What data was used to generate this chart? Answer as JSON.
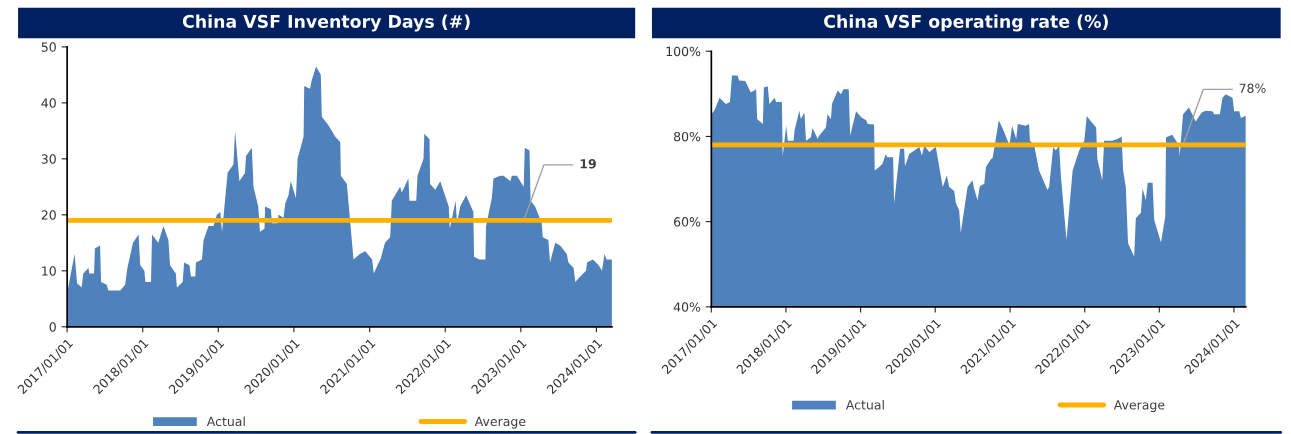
{
  "chart_data": [
    {
      "type": "area",
      "title": "China VSF Inventory Days (#)",
      "xlim": [
        "2017-01-01",
        "2024-03-16"
      ],
      "ylim": [
        0,
        50
      ],
      "yticks": [
        0,
        10,
        20,
        30,
        40,
        50
      ],
      "xticks": [
        {
          "value": "2017-01-01",
          "label": "2017/01/01"
        },
        {
          "value": "2018-01-01",
          "label": "2018/01/01"
        },
        {
          "value": "2019-01-01",
          "label": "2019/01/01"
        },
        {
          "value": "2020-01-01",
          "label": "2020/01/01"
        },
        {
          "value": "2021-01-01",
          "label": "2021/01/01"
        },
        {
          "value": "2022-01-01",
          "label": "2022/01/01"
        },
        {
          "value": "2023-01-01",
          "label": "2023/01/01"
        },
        {
          "value": "2024-01-01",
          "label": "2024/01/01"
        }
      ],
      "legend": "bottom",
      "grid": false,
      "ref_lines": [
        {
          "axis": "y",
          "value": 19,
          "label": "Average",
          "color": "#ffb000"
        }
      ],
      "annotations": [
        {
          "text": "19",
          "x": "2023-01-15",
          "y": 19
        }
      ],
      "series": [
        {
          "name": "Actual",
          "color": "#4f81bd",
          "x": [
            "2017-01-01",
            "2017-02-06",
            "2017-02-18",
            "2017-03-12",
            "2017-03-20",
            "2017-04-14",
            "2017-04-18",
            "2017-05-11",
            "2017-05-15",
            "2017-06-09",
            "2017-06-14",
            "2017-07-11",
            "2017-07-19",
            "2017-09-15",
            "2017-10-08",
            "2017-10-19",
            "2017-11-15",
            "2017-12-12",
            "2017-12-20",
            "2018-01-09",
            "2018-01-14",
            "2018-02-10",
            "2018-02-15",
            "2018-03-17",
            "2018-04-11",
            "2018-05-05",
            "2018-05-13",
            "2018-06-10",
            "2018-06-15",
            "2018-07-13",
            "2018-07-20",
            "2018-08-15",
            "2018-08-22",
            "2018-09-12",
            "2018-09-15",
            "2018-10-14",
            "2018-10-22",
            "2018-11-15",
            "2018-12-09",
            "2018-12-25",
            "2019-01-11",
            "2019-01-19",
            "2019-01-27",
            "2019-02-15",
            "2019-03-15",
            "2019-03-23",
            "2019-04-13",
            "2019-05-10",
            "2019-05-15",
            "2019-06-12",
            "2019-06-20",
            "2019-07-13",
            "2019-07-21",
            "2019-08-12",
            "2019-08-15",
            "2019-09-12",
            "2019-09-17",
            "2019-10-14",
            "2019-10-19",
            "2019-11-12",
            "2019-11-20",
            "2019-12-06",
            "2019-12-17",
            "2020-01-11",
            "2020-01-19",
            "2020-02-17",
            "2020-02-20",
            "2020-03-19",
            "2020-03-27",
            "2020-04-17",
            "2020-05-10",
            "2020-05-15",
            "2020-06-16",
            "2020-07-18",
            "2020-08-12",
            "2020-08-15",
            "2020-09-13",
            "2020-10-15",
            "2020-11-14",
            "2020-12-11",
            "2021-01-13",
            "2021-01-21",
            "2021-02-14",
            "2021-02-22",
            "2021-03-16",
            "2021-04-10",
            "2021-04-18",
            "2021-05-28",
            "2021-06-05",
            "2021-07-07",
            "2021-07-12",
            "2021-08-14",
            "2021-08-20",
            "2021-09-18",
            "2021-09-22",
            "2021-10-17",
            "2021-10-20",
            "2021-11-14",
            "2021-12-08",
            "2022-01-18",
            "2022-01-23",
            "2022-02-20",
            "2022-02-27",
            "2022-03-14",
            "2022-04-12",
            "2022-05-17",
            "2022-05-20",
            "2022-06-15",
            "2022-07-14",
            "2022-07-17",
            "2022-08-14",
            "2022-08-22",
            "2022-09-24",
            "2022-10-10",
            "2022-11-11",
            "2022-11-19",
            "2022-12-13",
            "2023-01-15",
            "2023-01-20",
            "2023-02-12",
            "2023-02-17",
            "2023-03-11",
            "2023-04-12",
            "2023-04-17",
            "2023-05-14",
            "2023-05-22",
            "2023-06-16",
            "2023-07-10",
            "2023-08-11",
            "2023-08-19",
            "2023-09-13",
            "2023-09-21",
            "2023-10-15",
            "2023-11-12",
            "2023-11-17",
            "2023-12-15",
            "2024-01-12",
            "2024-01-28",
            "2024-02-09",
            "2024-02-19",
            "2024-03-16"
          ],
          "values": [
            6,
            13,
            7.8,
            7,
            9.5,
            10.5,
            9.5,
            9.5,
            14,
            14.5,
            8,
            7.5,
            6.5,
            6.5,
            7.5,
            10.5,
            15,
            16.5,
            11,
            10,
            8,
            8,
            16.5,
            15,
            18,
            15.5,
            11,
            9.5,
            7,
            8,
            11.5,
            11,
            9,
            9,
            11.5,
            12,
            15.5,
            18,
            18,
            20,
            20.5,
            17,
            20,
            27.5,
            29,
            35,
            26,
            27.5,
            30.5,
            32,
            25,
            21.5,
            17,
            17.5,
            21.5,
            21,
            18.5,
            18.5,
            20,
            19.5,
            22,
            23.5,
            26,
            23,
            30,
            34,
            43,
            42.5,
            44,
            46.5,
            45,
            37.5,
            36,
            34,
            33,
            27,
            25.5,
            12,
            13,
            13.5,
            12,
            9.5,
            11.5,
            12,
            15,
            16,
            22.5,
            25,
            24,
            26.5,
            22.5,
            22.5,
            27,
            30,
            34.5,
            33.5,
            25.5,
            24.5,
            26,
            21.5,
            17.5,
            22.5,
            18.5,
            21.5,
            23.5,
            20.5,
            12.5,
            12,
            12,
            18,
            23,
            26.5,
            27,
            27,
            26,
            27,
            27,
            25,
            32,
            31.5,
            22.5,
            21.5,
            18.5,
            16,
            15.5,
            11.5,
            15,
            14.5,
            13,
            11.5,
            10.5,
            8,
            9,
            10,
            11.5,
            12,
            11,
            10,
            13,
            12,
            12
          ]
        }
      ]
    },
    {
      "type": "area",
      "title": "China VSF operating rate (%)",
      "xlim": [
        "2017-01-01",
        "2024-02-28"
      ],
      "ylim": [
        40,
        100
      ],
      "yticks": [
        {
          "value": 40,
          "label": "40%"
        },
        {
          "value": 60,
          "label": "60%"
        },
        {
          "value": 80,
          "label": "80%"
        },
        {
          "value": 100,
          "label": "100%"
        }
      ],
      "xticks": [
        {
          "value": "2017-01-01",
          "label": "2017/01/01"
        },
        {
          "value": "2018-01-01",
          "label": "2018/01/01"
        },
        {
          "value": "2019-01-01",
          "label": "2019/01/01"
        },
        {
          "value": "2020-01-01",
          "label": "2020/01/01"
        },
        {
          "value": "2021-01-01",
          "label": "2021/01/01"
        },
        {
          "value": "2022-01-01",
          "label": "2022/01/01"
        },
        {
          "value": "2023-01-01",
          "label": "2023/01/01"
        },
        {
          "value": "2024-01-01",
          "label": "2024/01/01"
        }
      ],
      "legend": "bottom",
      "grid": false,
      "ref_lines": [
        {
          "axis": "y",
          "value": 78,
          "label": "Average",
          "color": "#ffb000"
        }
      ],
      "annotations": [
        {
          "text": "78%",
          "x": "2023-04-27",
          "y": 78
        }
      ],
      "series": [
        {
          "name": "Actual",
          "color": "#4f81bd",
          "x": [
            "2017-01-01",
            "2017-01-17",
            "2017-02-10",
            "2017-03-13",
            "2017-04-02",
            "2017-04-12",
            "2017-05-09",
            "2017-05-17",
            "2017-06-16",
            "2017-07-13",
            "2017-08-08",
            "2017-08-13",
            "2017-09-10",
            "2017-09-15",
            "2017-10-04",
            "2017-10-12",
            "2017-11-06",
            "2017-11-14",
            "2017-12-12",
            "2017-12-16",
            "2018-01-02",
            "2018-01-10",
            "2018-02-07",
            "2018-02-12",
            "2018-03-07",
            "2018-03-15",
            "2018-04-01",
            "2018-04-09",
            "2018-05-03",
            "2018-05-11",
            "2018-06-05",
            "2018-06-13",
            "2018-07-15",
            "2018-07-23",
            "2018-08-09",
            "2018-08-14",
            "2018-09-11",
            "2018-09-27",
            "2018-10-09",
            "2018-11-04",
            "2018-11-11",
            "2018-12-10",
            "2019-01-04",
            "2019-01-28",
            "2019-02-05",
            "2019-03-08",
            "2019-03-11",
            "2019-04-02",
            "2019-04-18",
            "2019-05-04",
            "2019-05-12",
            "2019-06-09",
            "2019-06-14",
            "2019-07-13",
            "2019-08-02",
            "2019-08-06",
            "2019-08-27",
            "2019-09-21",
            "2019-10-15",
            "2019-10-28",
            "2019-11-09",
            "2019-12-03",
            "2019-12-27",
            "2020-01-04",
            "2020-01-29",
            "2020-02-07",
            "2020-02-27",
            "2020-03-09",
            "2020-04-03",
            "2020-04-11",
            "2020-04-27",
            "2020-05-05",
            "2020-06-07",
            "2020-07-01",
            "2020-07-09",
            "2020-07-26",
            "2020-08-06",
            "2020-08-28",
            "2020-09-05",
            "2020-09-30",
            "2020-10-08",
            "2020-11-07",
            "2020-11-30",
            "2020-12-29",
            "2021-01-11",
            "2021-01-31",
            "2021-02-08",
            "2021-03-19",
            "2021-04-04",
            "2021-04-08",
            "2021-04-29",
            "2021-05-23",
            "2021-07-03",
            "2021-07-11",
            "2021-07-31",
            "2021-08-13",
            "2021-08-29",
            "2021-09-07",
            "2021-10-04",
            "2021-11-03",
            "2021-12-05",
            "2021-12-30",
            "2022-01-11",
            "2022-02-01",
            "2022-02-26",
            "2022-03-04",
            "2022-03-28",
            "2022-04-06",
            "2022-05-16",
            "2022-06-10",
            "2022-07-01",
            "2022-07-08",
            "2022-07-21",
            "2022-08-01",
            "2022-08-31",
            "2022-09-08",
            "2022-10-03",
            "2022-10-11",
            "2022-10-27",
            "2022-11-05",
            "2022-11-29",
            "2022-12-07",
            "2023-01-09",
            "2023-01-30",
            "2023-02-03",
            "2023-03-05",
            "2023-04-07",
            "2023-04-10",
            "2023-04-27",
            "2023-05-26",
            "2023-06-28",
            "2023-07-27",
            "2023-08-16",
            "2023-09-18",
            "2023-09-26",
            "2023-10-24",
            "2023-11-06",
            "2023-11-22",
            "2023-12-25",
            "2024-01-02",
            "2024-01-27",
            "2024-02-04",
            "2024-02-25",
            "2024-02-28"
          ],
          "values": [
            85.2,
            86.2,
            89.1,
            87.6,
            88.1,
            94.3,
            94.3,
            93.1,
            93,
            90.3,
            91.1,
            84.1,
            82.9,
            91.5,
            91.8,
            87.6,
            89.1,
            88.1,
            88.1,
            75.3,
            82.5,
            79,
            79,
            81.4,
            86,
            84.1,
            85.6,
            79,
            79.8,
            82,
            79.4,
            80.2,
            82.1,
            85.2,
            84.1,
            87.6,
            90.8,
            89.9,
            91.1,
            91.1,
            80.2,
            85.9,
            84.5,
            83.8,
            82.9,
            82.8,
            72,
            72.8,
            73.6,
            75.8,
            75.1,
            75.1,
            64.3,
            77.1,
            77.1,
            73,
            75.9,
            76.7,
            77.5,
            75.5,
            77.9,
            76.3,
            77.3,
            77.5,
            70.5,
            68.1,
            70.9,
            68.1,
            67.2,
            64.3,
            62.7,
            57.4,
            68.1,
            69.7,
            67.8,
            65,
            68.3,
            68.9,
            72.8,
            74.7,
            75,
            83.8,
            81.4,
            77.9,
            82.5,
            79.4,
            82.9,
            82.5,
            82.9,
            79,
            77.9,
            72,
            67.4,
            68.1,
            77.5,
            76.7,
            77.9,
            70.5,
            55.7,
            72,
            76.7,
            79,
            84.8,
            83.5,
            82.1,
            74.7,
            69.7,
            79,
            79,
            79.4,
            80,
            72,
            68.1,
            54.9,
            51.8,
            60.8,
            62.1,
            67.8,
            65,
            69.1,
            69.1,
            60.4,
            55.1,
            61.2,
            79.8,
            80.4,
            77.9,
            75.3,
            85.2,
            86.8,
            83.5,
            85.6,
            86,
            85.9,
            85.2,
            85.2,
            89.1,
            89.9,
            89.1,
            85.9,
            85.9,
            84.3,
            84.8,
            84.8
          ]
        }
      ]
    }
  ]
}
